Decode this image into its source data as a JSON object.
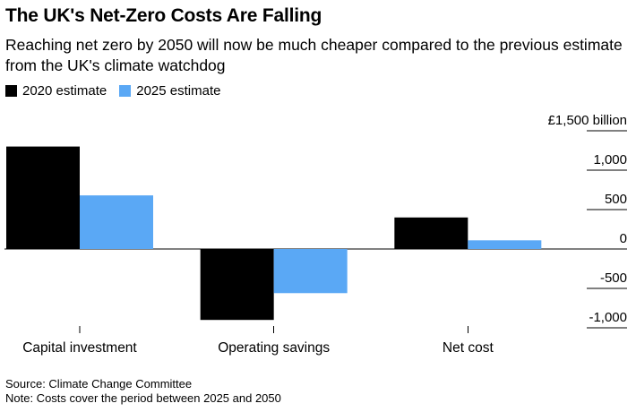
{
  "title": "The UK's Net-Zero Costs Are Falling",
  "subtitle": "Reaching net zero by 2050 will now be much cheaper compared to the previous estimate from the UK's climate watchdog",
  "legend": [
    {
      "label": "2020 estimate",
      "color": "#000000"
    },
    {
      "label": "2025 estimate",
      "color": "#5aa8f5"
    }
  ],
  "chart_data": {
    "type": "bar",
    "title": "The UK's Net-Zero Costs Are Falling",
    "categories": [
      "Capital investment",
      "Operating savings",
      "Net cost"
    ],
    "series": [
      {
        "name": "2020 estimate",
        "color": "#000000",
        "values": [
          1300,
          -900,
          400
        ]
      },
      {
        "name": "2025 estimate",
        "color": "#5aa8f5",
        "values": [
          680,
          -560,
          110
        ]
      }
    ],
    "ylim": [
      -1000,
      1500
    ],
    "yticks": [
      -1000,
      -500,
      0,
      500,
      1000,
      1500
    ],
    "ytick_labels": [
      "-1,000",
      "-500",
      "0",
      "500",
      "1,000",
      "£1,500 billion"
    ],
    "xlabel": "",
    "ylabel": "",
    "grid": true,
    "legend_position": "top-left"
  },
  "footer": {
    "source": "Source: Climate Change Committee",
    "note": "Note: Costs cover the period between 2025 and 2050"
  }
}
